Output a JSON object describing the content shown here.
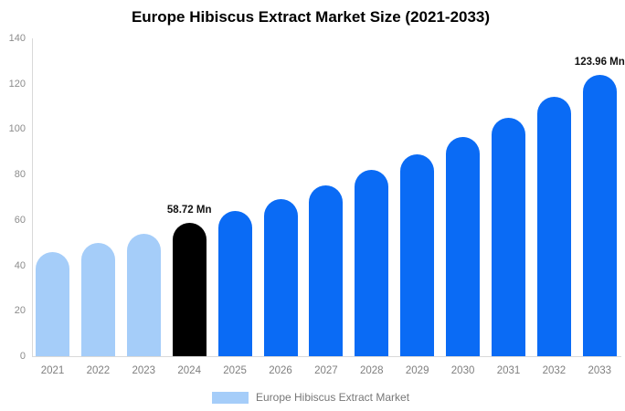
{
  "title": "Europe Hibiscus Extract Market Size (2021-2033)",
  "legend": {
    "label": "Europe Hibiscus Extract Market"
  },
  "colors": {
    "past": "#a5cdf9",
    "current": "#000000",
    "forecast": "#0a6bf5",
    "axis_line": "#d9d9d9",
    "tick_label": "#8c8c8c",
    "annotation_text": "#111111"
  },
  "chart_data": {
    "type": "bar",
    "title": "Europe Hibiscus Extract Market Size (2021-2033)",
    "xlabel": "",
    "ylabel": "",
    "categories": [
      "2021",
      "2022",
      "2023",
      "2024",
      "2025",
      "2026",
      "2027",
      "2028",
      "2029",
      "2030",
      "2031",
      "2032",
      "2033"
    ],
    "values": [
      45.8,
      49.7,
      54.0,
      58.72,
      63.8,
      69.3,
      75.3,
      81.9,
      88.9,
      96.7,
      105.0,
      114.1,
      123.96
    ],
    "bar_roles": [
      "past",
      "past",
      "past",
      "current",
      "forecast",
      "forecast",
      "forecast",
      "forecast",
      "forecast",
      "forecast",
      "forecast",
      "forecast",
      "forecast"
    ],
    "annotations": [
      {
        "index": 3,
        "text": "58.72 Mn"
      },
      {
        "index": 12,
        "text": "123.96 Mn"
      }
    ],
    "ylim": [
      0,
      140
    ],
    "yticks": [
      0,
      20,
      40,
      60,
      80,
      100,
      120,
      140
    ],
    "grid": false,
    "legend_position": "bottom",
    "legend_entries": [
      "Europe Hibiscus Extract Market"
    ]
  }
}
